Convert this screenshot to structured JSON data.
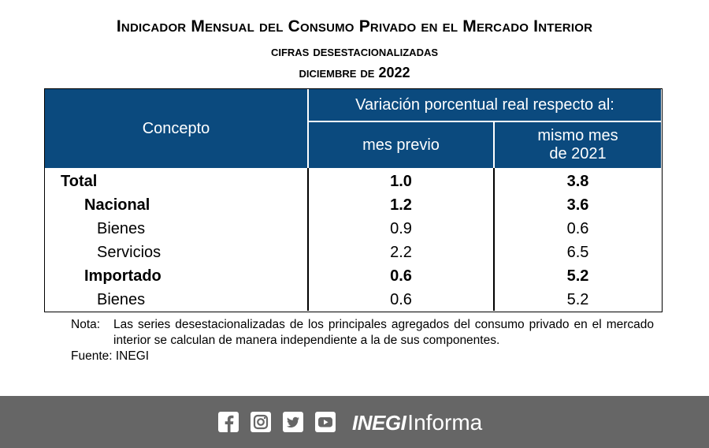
{
  "header": {
    "title": "Indicador Mensual del Consumo Privado en el Mercado Interior",
    "subtitle": "cifras desestacionalizadas",
    "period": "diciembre de 2022"
  },
  "table": {
    "col_concept": "Concepto",
    "col_variation": "Variación porcentual real respecto al:",
    "col_prev": "mes previo",
    "col_same_line1": "mismo mes",
    "col_same_line2": "de 2021",
    "rows": [
      {
        "concept": "Total",
        "prev": "1.0",
        "same": "3.8",
        "bold": true,
        "indent": 0
      },
      {
        "concept": "Nacional",
        "prev": "1.2",
        "same": "3.6",
        "bold": true,
        "indent": 1
      },
      {
        "concept": "Bienes",
        "prev": "0.9",
        "same": "0.6",
        "bold": false,
        "indent": 2
      },
      {
        "concept": "Servicios",
        "prev": "2.2",
        "same": "6.5",
        "bold": false,
        "indent": 2
      },
      {
        "concept": "Importado",
        "prev": "0.6",
        "same": "5.2",
        "bold": true,
        "indent": 1
      },
      {
        "concept": "Bienes",
        "prev": "0.6",
        "same": "5.2",
        "bold": false,
        "indent": 2
      }
    ]
  },
  "notes": {
    "label": "Nota:",
    "text": "Las series desestacionalizadas de los principales agregados del consumo privado en el mercado interior se calculan de manera independiente a la de sus componentes.",
    "source": "Fuente: INEGI"
  },
  "footer": {
    "brand_bold": "INEGI",
    "brand_light": "Informa",
    "icons": [
      "facebook-icon",
      "instagram-icon",
      "twitter-icon",
      "youtube-icon"
    ],
    "bar_color": "#666666"
  },
  "colors": {
    "header_blue": "#0b4a7e"
  }
}
